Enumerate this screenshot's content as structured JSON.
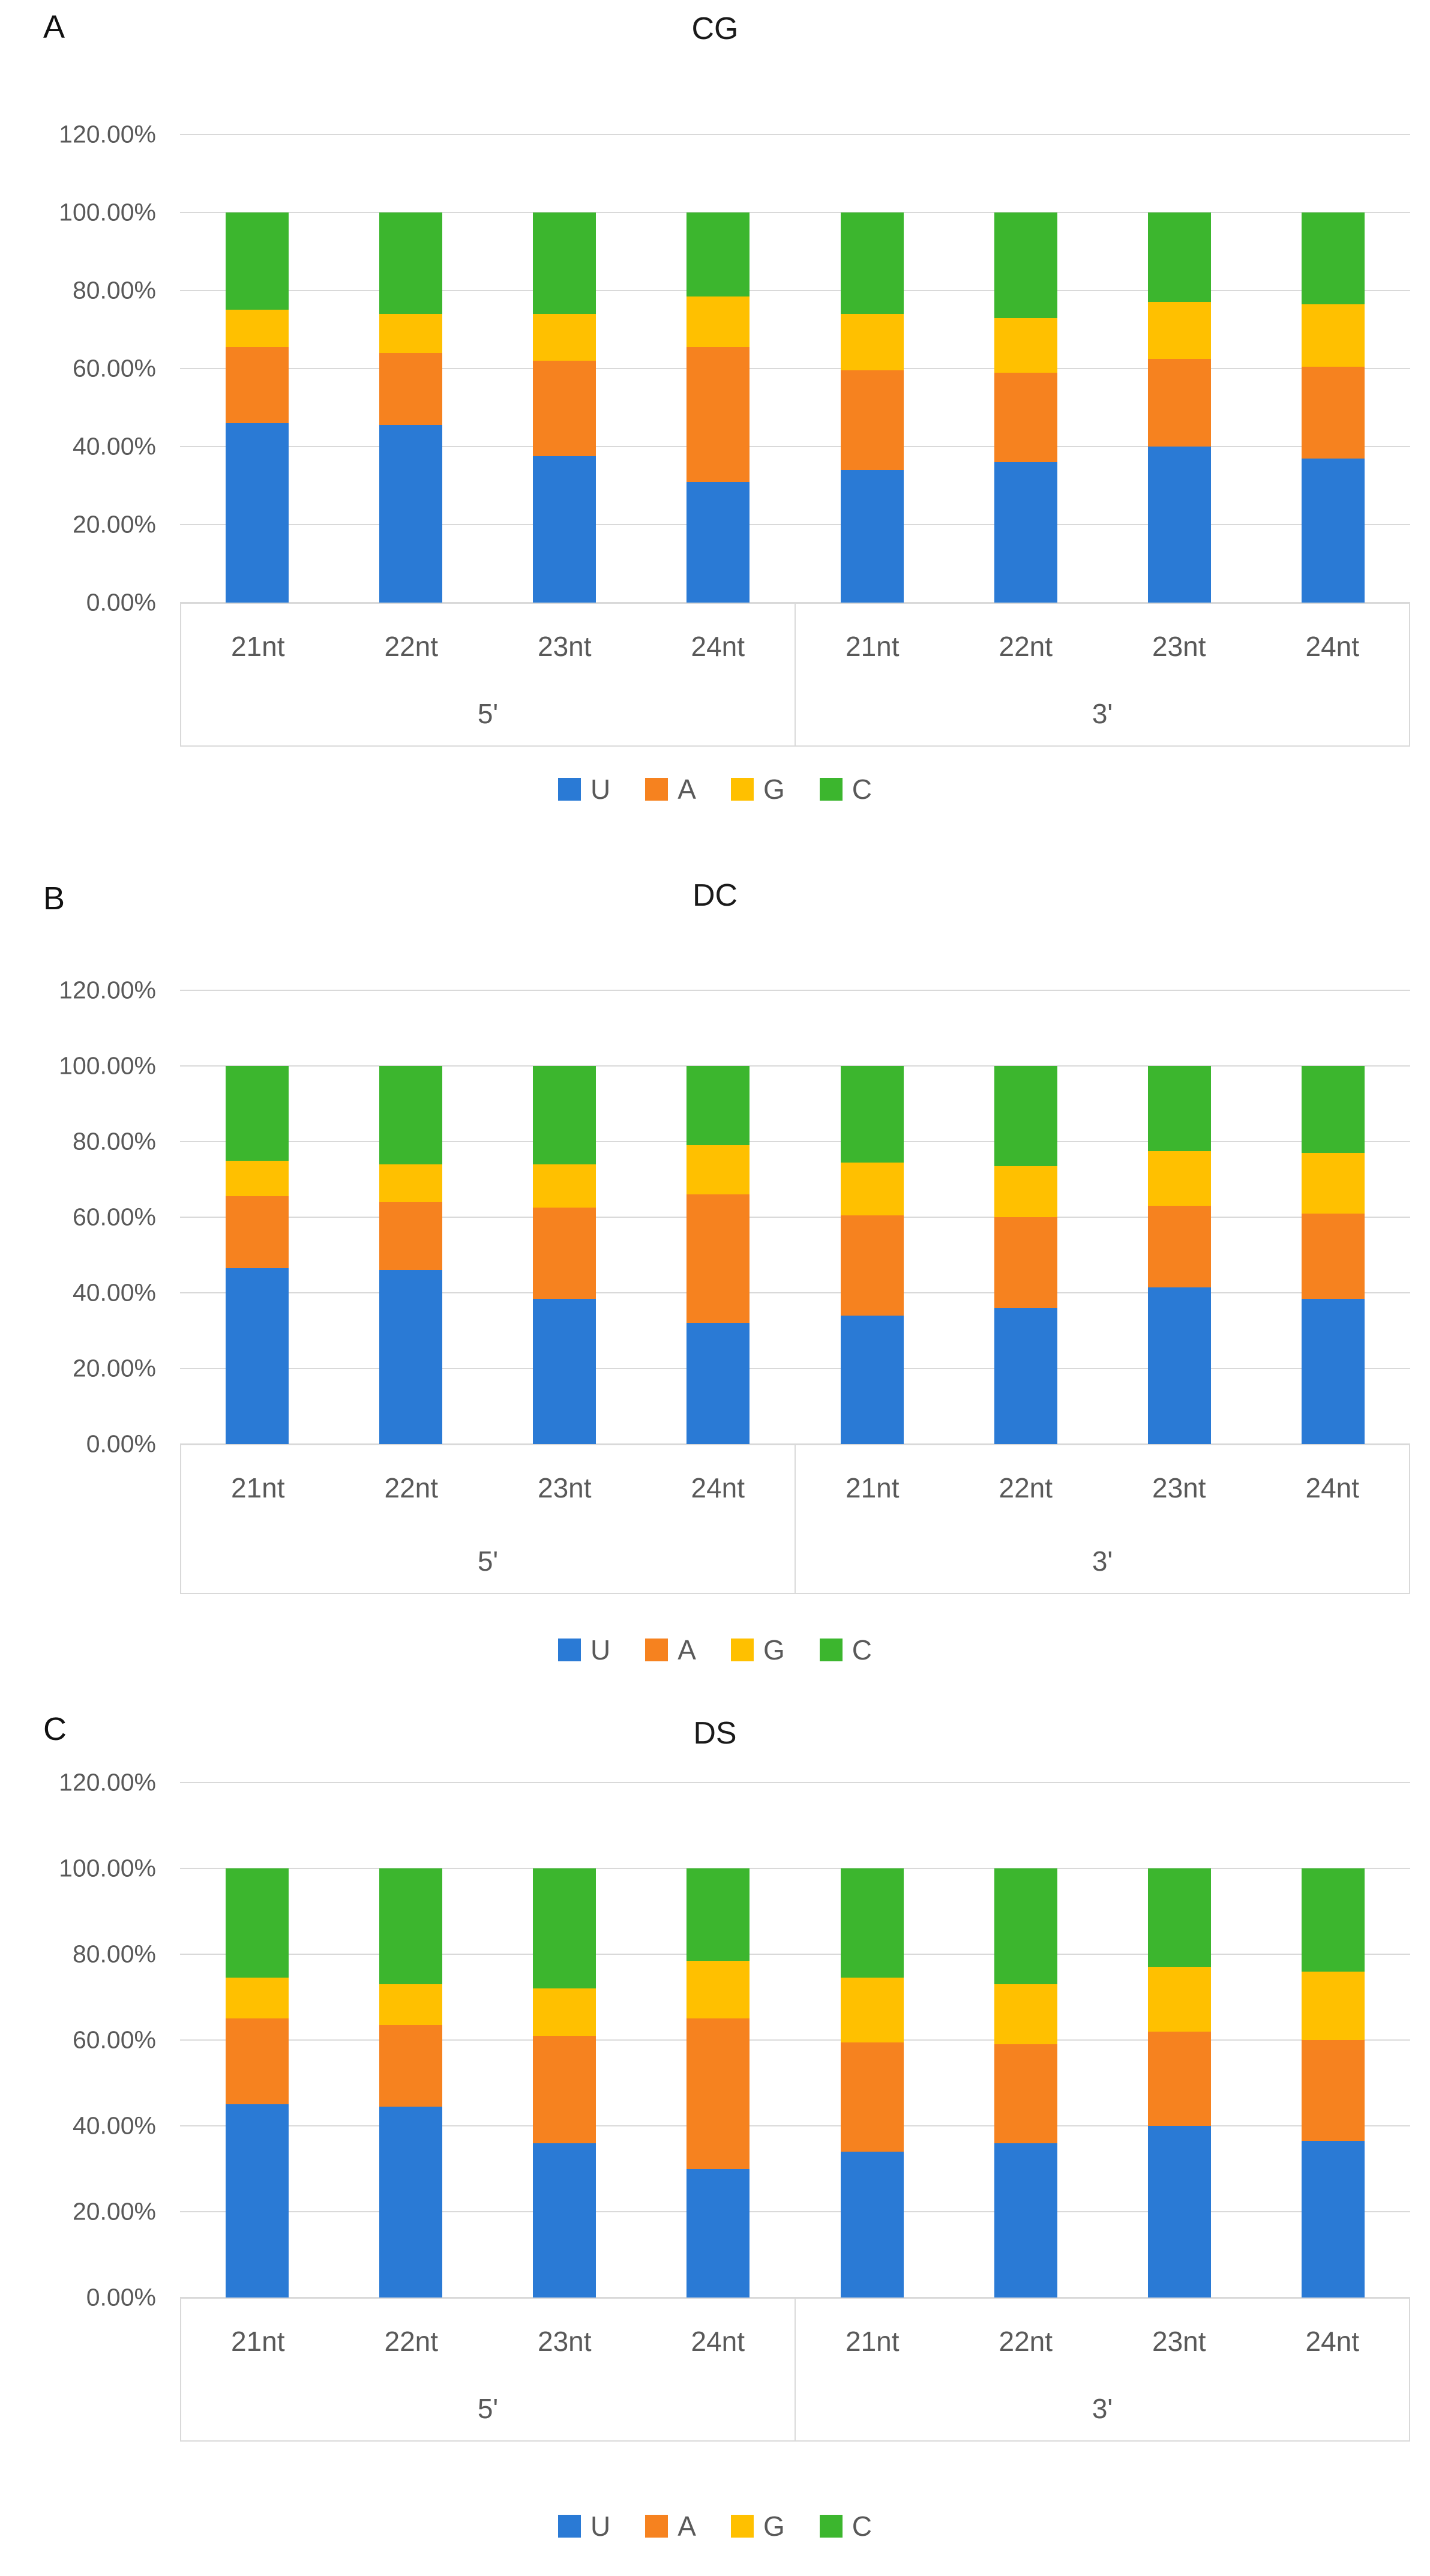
{
  "figure": {
    "background": "#ffffff",
    "grid_color": "#d9d9d9",
    "text_color": "#595959",
    "title_color": "#1a1a1a"
  },
  "legend": {
    "position": "bottom",
    "items": [
      {
        "label": "U",
        "color": "#2a7ad5"
      },
      {
        "label": "A",
        "color": "#f6821f"
      },
      {
        "label": "G",
        "color": "#ffc000"
      },
      {
        "label": "C",
        "color": "#3cb62e"
      }
    ]
  },
  "chart_data": [
    {
      "type": "bar",
      "stacked": true,
      "panel_label": "A",
      "title": "CG",
      "ylim": [
        0,
        120
      ],
      "grid": true,
      "yticks": [
        "120.00%",
        "100.00%",
        "80.00%",
        "60.00%",
        "40.00%",
        "20.00%",
        "0.00%"
      ],
      "groups": [
        {
          "label": "5'",
          "categories": [
            "21nt",
            "22nt",
            "23nt",
            "24nt"
          ]
        },
        {
          "label": "3'",
          "categories": [
            "21nt",
            "22nt",
            "23nt",
            "24nt"
          ]
        }
      ],
      "series": [
        {
          "name": "U",
          "color": "#2a7ad5",
          "values": [
            46.0,
            45.5,
            37.5,
            31.0,
            34.0,
            36.0,
            40.0,
            37.0
          ]
        },
        {
          "name": "A",
          "color": "#f6821f",
          "values": [
            19.5,
            18.5,
            24.5,
            34.5,
            25.5,
            23.0,
            22.5,
            23.5
          ]
        },
        {
          "name": "G",
          "color": "#ffc000",
          "values": [
            9.5,
            10.0,
            12.0,
            13.0,
            14.5,
            14.0,
            14.5,
            16.0
          ]
        },
        {
          "name": "C",
          "color": "#3cb62e",
          "values": [
            25.0,
            26.0,
            26.0,
            21.5,
            26.0,
            27.0,
            23.0,
            23.5
          ]
        }
      ]
    },
    {
      "type": "bar",
      "stacked": true,
      "panel_label": "B",
      "title": "DC",
      "ylim": [
        0,
        120
      ],
      "grid": true,
      "yticks": [
        "120.00%",
        "100.00%",
        "80.00%",
        "60.00%",
        "40.00%",
        "20.00%",
        "0.00%"
      ],
      "groups": [
        {
          "label": "5'",
          "categories": [
            "21nt",
            "22nt",
            "23nt",
            "24nt"
          ]
        },
        {
          "label": "3'",
          "categories": [
            "21nt",
            "22nt",
            "23nt",
            "24nt"
          ]
        }
      ],
      "series": [
        {
          "name": "U",
          "color": "#2a7ad5",
          "values": [
            46.5,
            46.0,
            38.5,
            32.0,
            34.0,
            36.0,
            41.5,
            38.5
          ]
        },
        {
          "name": "A",
          "color": "#f6821f",
          "values": [
            19.0,
            18.0,
            24.0,
            34.0,
            26.5,
            24.0,
            21.5,
            22.5
          ]
        },
        {
          "name": "G",
          "color": "#ffc000",
          "values": [
            9.5,
            10.0,
            11.5,
            13.0,
            14.0,
            13.5,
            14.5,
            16.0
          ]
        },
        {
          "name": "C",
          "color": "#3cb62e",
          "values": [
            25.0,
            26.0,
            26.0,
            21.0,
            25.5,
            26.5,
            22.5,
            23.0
          ]
        }
      ]
    },
    {
      "type": "bar",
      "stacked": true,
      "panel_label": "C",
      "title": "DS",
      "ylim": [
        0,
        120
      ],
      "grid": true,
      "yticks": [
        "120.00%",
        "100.00%",
        "80.00%",
        "60.00%",
        "40.00%",
        "20.00%",
        "0.00%"
      ],
      "groups": [
        {
          "label": "5'",
          "categories": [
            "21nt",
            "22nt",
            "23nt",
            "24nt"
          ]
        },
        {
          "label": "3'",
          "categories": [
            "21nt",
            "22nt",
            "23nt",
            "24nt"
          ]
        }
      ],
      "series": [
        {
          "name": "U",
          "color": "#2a7ad5",
          "values": [
            45.0,
            44.5,
            36.0,
            30.0,
            34.0,
            36.0,
            40.0,
            36.5
          ]
        },
        {
          "name": "A",
          "color": "#f6821f",
          "values": [
            20.0,
            19.0,
            25.0,
            35.0,
            25.5,
            23.0,
            22.0,
            23.5
          ]
        },
        {
          "name": "G",
          "color": "#ffc000",
          "values": [
            9.5,
            9.5,
            11.0,
            13.5,
            15.0,
            14.0,
            15.0,
            16.0
          ]
        },
        {
          "name": "C",
          "color": "#3cb62e",
          "values": [
            25.5,
            27.0,
            28.0,
            21.5,
            25.5,
            27.0,
            23.0,
            24.0
          ]
        }
      ]
    }
  ]
}
